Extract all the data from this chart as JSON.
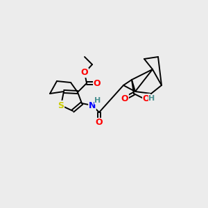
{
  "background_color": "#ececec",
  "figsize": [
    3.0,
    3.0
  ],
  "dpi": 100,
  "atom_colors": {
    "O": "#ff0000",
    "N": "#0000ff",
    "S": "#cccc00",
    "H": "#4a9090",
    "C": "#000000"
  },
  "bond_color": "#000000",
  "bond_width": 1.4
}
